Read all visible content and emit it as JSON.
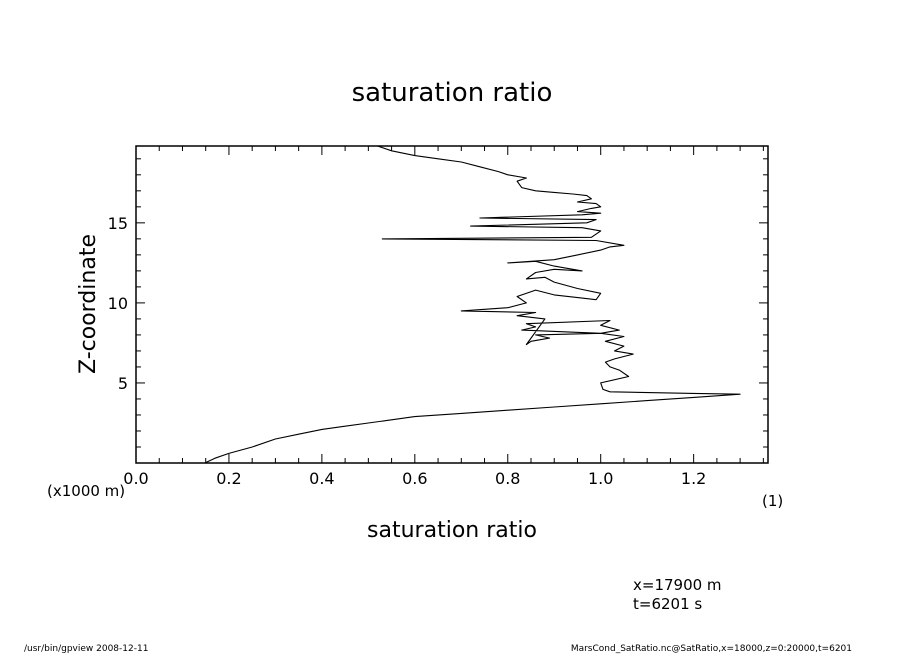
{
  "chart_data": {
    "type": "line",
    "title": "saturation ratio",
    "xlabel": "saturation ratio",
    "ylabel": "Z-coordinate",
    "x_unit": "(1)",
    "y_unit": "(x1000 m)",
    "xlim": [
      0.0,
      1.36
    ],
    "ylim": [
      0,
      19.8
    ],
    "xticks": [
      0.0,
      0.2,
      0.4,
      0.6,
      0.8,
      1.0,
      1.2
    ],
    "xtick_labels": [
      "0.0",
      "0.2",
      "0.4",
      "0.6",
      "0.8",
      "1.0",
      "1.2"
    ],
    "yticks": [
      5,
      10,
      15
    ],
    "ytick_labels": [
      "5",
      "10",
      "15"
    ],
    "grid": false,
    "series": [
      {
        "x": [
          0.148,
          0.17,
          0.2,
          0.25,
          0.3,
          0.35,
          0.4,
          0.45,
          0.5,
          0.55,
          0.6,
          0.7,
          0.8,
          0.9,
          1.0,
          1.1,
          1.2,
          1.3,
          1.2,
          1.02,
          1.005,
          1.0,
          1.06,
          1.04,
          1.02,
          1.01,
          1.03,
          1.07,
          1.03,
          1.05,
          1.01,
          1.05,
          1.0,
          1.04,
          1.0,
          1.02,
          0.84,
          0.86,
          0.83,
          1.0,
          0.86,
          0.89,
          0.85,
          0.84,
          0.88,
          0.82,
          0.86,
          0.7,
          0.8,
          0.84,
          0.82,
          0.86,
          0.9,
          0.96,
          0.99,
          1.0,
          0.95,
          0.9,
          0.88,
          0.84,
          0.86,
          0.9,
          0.96,
          0.9,
          0.86,
          0.8,
          0.9,
          0.95,
          1.0,
          1.02,
          1.05,
          0.99,
          0.53,
          0.98,
          1.0,
          0.96,
          0.72,
          0.97,
          0.99,
          0.74,
          0.96,
          1.0,
          0.95,
          0.98,
          1.0,
          0.99,
          0.95,
          0.98,
          0.97,
          0.94,
          0.9,
          0.86,
          0.83,
          0.82,
          0.84,
          0.8,
          0.78,
          0.74,
          0.7,
          0.65,
          0.6,
          0.55,
          0.52
        ],
        "y": [
          0.0,
          0.3,
          0.6,
          1.0,
          1.5,
          1.8,
          2.1,
          2.3,
          2.5,
          2.7,
          2.9,
          3.1,
          3.3,
          3.5,
          3.7,
          3.9,
          4.1,
          4.3,
          4.35,
          4.45,
          4.6,
          5.0,
          5.4,
          5.8,
          6.0,
          6.3,
          6.5,
          6.8,
          7.0,
          7.3,
          7.6,
          7.9,
          8.1,
          8.3,
          8.6,
          8.9,
          8.7,
          8.5,
          8.3,
          8.1,
          8.0,
          7.8,
          7.6,
          7.4,
          9.0,
          9.2,
          9.4,
          9.5,
          9.7,
          10.0,
          10.4,
          10.8,
          10.5,
          10.3,
          10.2,
          10.6,
          10.9,
          11.3,
          11.6,
          11.5,
          11.9,
          12.1,
          12.0,
          12.3,
          12.6,
          12.5,
          12.7,
          13.0,
          13.3,
          13.5,
          13.6,
          13.9,
          14.0,
          14.1,
          14.5,
          14.7,
          14.8,
          15.0,
          15.2,
          15.3,
          15.5,
          15.6,
          15.7,
          15.9,
          16.0,
          16.2,
          16.3,
          16.5,
          16.7,
          16.8,
          16.9,
          17.0,
          17.2,
          17.6,
          17.8,
          18.0,
          18.2,
          18.5,
          18.8,
          19.0,
          19.2,
          19.5,
          19.8
        ]
      }
    ]
  },
  "annotations": {
    "x_position": "x=17900  m",
    "time": "t=6201  s"
  },
  "footer": {
    "left": "/usr/bin/gpview   2008-12-11",
    "right": "MarsCond_SatRatio.nc@SatRatio,x=18000,z=0:20000,t=6201"
  }
}
